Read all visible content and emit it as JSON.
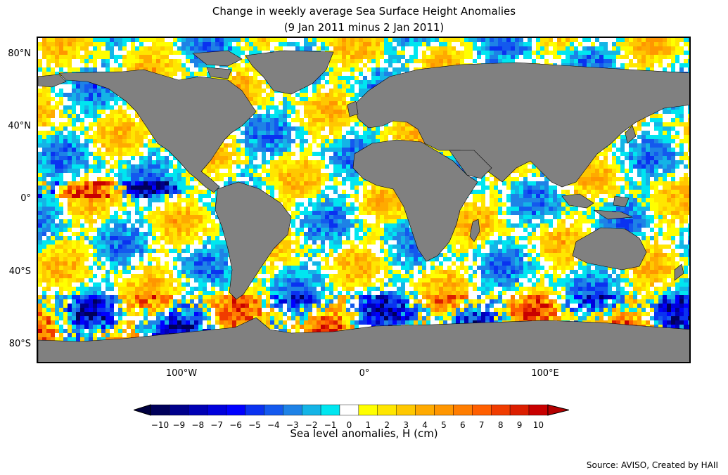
{
  "title": {
    "line1": "Change in weekly average Sea Surface Height Anomalies",
    "line2": "(9 Jan 2011 minus 2 Jan 2011)"
  },
  "axes": {
    "lat_labels": [
      "80°N",
      "40°N",
      "0°",
      "40°S",
      "80°S"
    ],
    "lon_labels": [
      "100°W",
      "0°",
      "100°E"
    ]
  },
  "colorbar": {
    "label": "Sea level anomalies, H (cm)",
    "ticks": [
      "−10",
      "−9",
      "−8",
      "−7",
      "−6",
      "−5",
      "−4",
      "−3",
      "−2",
      "−1",
      "0",
      "1",
      "2",
      "3",
      "4",
      "5",
      "6",
      "7",
      "8",
      "9",
      "10"
    ],
    "colors": [
      "#00005a",
      "#00008b",
      "#0000b4",
      "#0000dc",
      "#0000ff",
      "#0a32f0",
      "#1459ee",
      "#1e82e6",
      "#14b4e6",
      "#00e6f0",
      "#ffffff",
      "#ffff00",
      "#ffe600",
      "#ffc800",
      "#ffaa00",
      "#ff9600",
      "#ff7d00",
      "#ff5f00",
      "#f03c00",
      "#dc1e00",
      "#c80000"
    ],
    "under_color": "#000040",
    "over_color": "#b40000"
  },
  "land_color": "#808080",
  "source": "Source: AVISO, Created by HAII"
}
